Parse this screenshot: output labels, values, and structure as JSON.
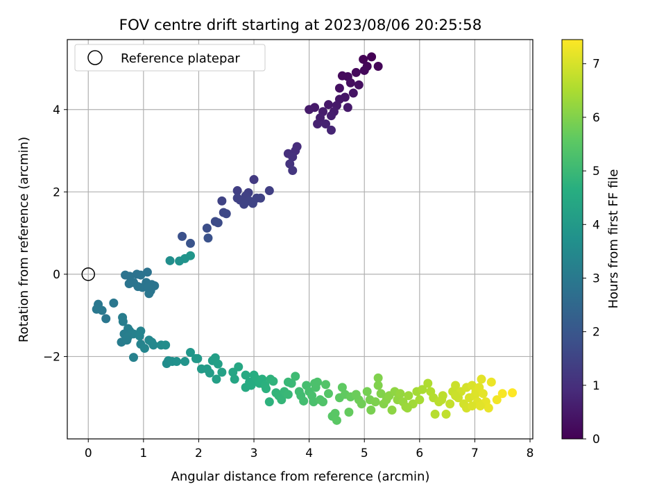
{
  "chart_data": {
    "type": "scatter",
    "title": "FOV centre drift starting at 2023/08/06 20:25:58",
    "xlabel": "Angular distance from reference (arcmin)",
    "ylabel": "Rotation from reference (arcmin)",
    "xlim": [
      -0.38,
      8.05
    ],
    "ylim": [
      -4.0,
      5.7
    ],
    "x_ticks": [
      0,
      1,
      2,
      3,
      4,
      5,
      6,
      7,
      8
    ],
    "y_ticks": [
      -2,
      0,
      2,
      4
    ],
    "grid": true,
    "legend": {
      "placement": "top-left",
      "entries": [
        "Reference platepar"
      ]
    },
    "colorbar": {
      "label": "Hours from first FF file",
      "range": [
        0,
        7.45
      ],
      "ticks": [
        0,
        1,
        2,
        3,
        4,
        5,
        6,
        7
      ],
      "colormap": "viridis"
    },
    "reference_point": {
      "x": 0,
      "y": 0,
      "label": "Reference platepar"
    },
    "series": [
      {
        "points": [
          [
            5.13,
            5.28
          ],
          [
            4.98,
            5.22
          ],
          [
            5.25,
            5.05
          ],
          [
            5.05,
            5.05
          ],
          [
            5.0,
            4.95
          ],
          [
            4.85,
            4.9
          ],
          [
            4.7,
            4.8
          ],
          [
            4.6,
            4.82
          ],
          [
            4.75,
            4.65
          ],
          [
            4.9,
            4.6
          ],
          [
            4.55,
            4.52
          ],
          [
            4.8,
            4.4
          ],
          [
            4.65,
            4.3
          ],
          [
            4.55,
            4.25
          ],
          [
            4.5,
            4.1
          ],
          [
            4.7,
            4.05
          ],
          [
            4.35,
            4.12
          ],
          [
            4.45,
            3.95
          ],
          [
            4.25,
            3.95
          ],
          [
            4.1,
            4.05
          ],
          [
            4.0,
            4.0
          ],
          [
            4.4,
            3.85
          ],
          [
            4.2,
            3.8
          ],
          [
            4.15,
            3.65
          ],
          [
            4.3,
            3.65
          ],
          [
            4.4,
            3.5
          ],
          [
            3.78,
            3.1
          ],
          [
            3.75,
            3.0
          ],
          [
            3.62,
            2.93
          ],
          [
            3.7,
            2.85
          ],
          [
            3.65,
            2.68
          ],
          [
            3.7,
            2.52
          ],
          [
            3.0,
            2.3
          ],
          [
            3.28,
            2.03
          ],
          [
            2.7,
            2.03
          ],
          [
            2.9,
            1.98
          ],
          [
            2.85,
            1.9
          ],
          [
            3.05,
            1.85
          ],
          [
            3.12,
            1.85
          ],
          [
            2.7,
            1.85
          ],
          [
            2.75,
            1.8
          ],
          [
            2.92,
            1.78
          ],
          [
            2.98,
            1.72
          ],
          [
            2.82,
            1.7
          ],
          [
            2.42,
            1.78
          ],
          [
            2.45,
            1.5
          ],
          [
            2.5,
            1.47
          ],
          [
            2.3,
            1.28
          ],
          [
            2.35,
            1.25
          ],
          [
            2.15,
            1.12
          ],
          [
            2.17,
            0.88
          ],
          [
            1.7,
            0.92
          ],
          [
            1.85,
            0.75
          ],
          [
            1.85,
            0.45
          ],
          [
            1.75,
            0.38
          ],
          [
            1.65,
            0.32
          ],
          [
            1.48,
            0.33
          ],
          [
            1.07,
            0.05
          ],
          [
            0.95,
            -0.02
          ],
          [
            0.88,
            0.0
          ],
          [
            0.67,
            -0.02
          ],
          [
            0.75,
            -0.05
          ],
          [
            0.82,
            -0.2
          ],
          [
            0.74,
            -0.23
          ],
          [
            0.9,
            -0.3
          ],
          [
            0.98,
            -0.32
          ],
          [
            1.05,
            -0.2
          ],
          [
            1.15,
            -0.25
          ],
          [
            1.2,
            -0.28
          ],
          [
            1.13,
            -0.4
          ],
          [
            1.1,
            -0.47
          ],
          [
            1.08,
            -0.32
          ],
          [
            0.18,
            -0.73
          ],
          [
            0.15,
            -0.85
          ],
          [
            0.25,
            -0.88
          ],
          [
            0.32,
            -1.08
          ],
          [
            0.46,
            -0.7
          ],
          [
            0.62,
            -1.05
          ],
          [
            0.63,
            -1.15
          ],
          [
            0.72,
            -1.32
          ],
          [
            0.75,
            -1.38
          ],
          [
            0.82,
            -1.45
          ],
          [
            0.65,
            -1.45
          ],
          [
            0.72,
            -1.52
          ],
          [
            0.6,
            -1.65
          ],
          [
            0.7,
            -1.6
          ],
          [
            0.95,
            -1.38
          ],
          [
            0.93,
            -1.5
          ],
          [
            0.95,
            -1.7
          ],
          [
            1.02,
            -1.8
          ],
          [
            1.1,
            -1.6
          ],
          [
            1.15,
            -1.65
          ],
          [
            1.18,
            -1.72
          ],
          [
            1.32,
            -1.72
          ],
          [
            1.4,
            -1.72
          ],
          [
            0.82,
            -2.02
          ],
          [
            1.45,
            -2.1
          ],
          [
            1.42,
            -2.17
          ],
          [
            1.52,
            -2.12
          ],
          [
            1.6,
            -2.12
          ],
          [
            1.75,
            -2.12
          ],
          [
            1.85,
            -1.9
          ],
          [
            1.95,
            -2.05
          ],
          [
            2.05,
            -2.3
          ],
          [
            2.15,
            -2.3
          ],
          [
            2.25,
            -2.1
          ],
          [
            2.3,
            -2.03
          ],
          [
            2.35,
            -2.18
          ],
          [
            2.42,
            -2.38
          ],
          [
            2.32,
            -2.55
          ],
          [
            2.62,
            -2.38
          ],
          [
            2.65,
            -2.55
          ],
          [
            2.72,
            -2.25
          ],
          [
            2.85,
            -2.45
          ],
          [
            2.85,
            -2.75
          ],
          [
            2.92,
            -2.62
          ],
          [
            3.0,
            -2.45
          ],
          [
            3.05,
            -2.55
          ],
          [
            3.1,
            -2.65
          ],
          [
            3.15,
            -2.55
          ],
          [
            3.2,
            -2.7
          ],
          [
            3.22,
            -2.78
          ],
          [
            3.3,
            -2.55
          ],
          [
            3.35,
            -2.6
          ],
          [
            3.4,
            -2.88
          ],
          [
            3.45,
            -2.95
          ],
          [
            3.5,
            -3.05
          ],
          [
            3.55,
            -2.85
          ],
          [
            3.62,
            -2.92
          ],
          [
            3.68,
            -2.65
          ],
          [
            3.75,
            -2.48
          ],
          [
            3.82,
            -2.85
          ],
          [
            3.85,
            -2.95
          ],
          [
            3.9,
            -3.08
          ],
          [
            3.95,
            -2.7
          ],
          [
            4.0,
            -2.85
          ],
          [
            4.05,
            -2.95
          ],
          [
            4.08,
            -3.1
          ],
          [
            4.12,
            -2.75
          ],
          [
            4.15,
            -2.62
          ],
          [
            4.2,
            -3.05
          ],
          [
            4.25,
            -3.1
          ],
          [
            4.3,
            -2.68
          ],
          [
            4.35,
            -2.9
          ],
          [
            4.42,
            -3.45
          ],
          [
            4.47,
            -3.38
          ],
          [
            4.5,
            -3.55
          ],
          [
            4.55,
            -3.0
          ],
          [
            4.6,
            -2.75
          ],
          [
            4.65,
            -2.92
          ],
          [
            4.72,
            -3.35
          ],
          [
            4.75,
            -2.98
          ],
          [
            4.9,
            -3.05
          ],
          [
            4.95,
            -3.15
          ],
          [
            5.05,
            -2.85
          ],
          [
            5.1,
            -3.05
          ],
          [
            5.12,
            -3.3
          ],
          [
            5.2,
            -3.1
          ],
          [
            5.25,
            -2.7
          ],
          [
            5.25,
            -2.52
          ],
          [
            5.3,
            -2.9
          ],
          [
            5.35,
            -3.15
          ],
          [
            5.4,
            -3.05
          ],
          [
            5.45,
            -2.95
          ],
          [
            5.5,
            -3.3
          ],
          [
            5.55,
            -2.85
          ],
          [
            5.6,
            -3.05
          ],
          [
            5.65,
            -2.9
          ],
          [
            5.7,
            -3.1
          ],
          [
            5.75,
            -3.22
          ],
          [
            5.8,
            -2.95
          ],
          [
            5.88,
            -3.15
          ],
          [
            5.95,
            -2.85
          ],
          [
            6.0,
            -3.05
          ],
          [
            6.05,
            -2.8
          ],
          [
            6.15,
            -2.65
          ],
          [
            6.2,
            -2.85
          ],
          [
            6.25,
            -3.0
          ],
          [
            6.28,
            -3.4
          ],
          [
            6.35,
            -3.1
          ],
          [
            6.42,
            -2.95
          ],
          [
            6.48,
            -3.4
          ],
          [
            6.55,
            -3.15
          ],
          [
            6.6,
            -2.85
          ],
          [
            6.65,
            -2.7
          ],
          [
            6.7,
            -3.0
          ],
          [
            6.75,
            -2.85
          ],
          [
            6.8,
            -3.15
          ],
          [
            6.85,
            -2.75
          ],
          [
            6.9,
            -3.0
          ],
          [
            6.95,
            -2.7
          ],
          [
            7.0,
            -2.95
          ],
          [
            7.02,
            -2.85
          ],
          [
            7.05,
            -3.1
          ],
          [
            7.08,
            -2.75
          ],
          [
            7.12,
            -2.55
          ],
          [
            7.15,
            -2.9
          ],
          [
            7.2,
            -3.1
          ],
          [
            7.25,
            -3.25
          ],
          [
            7.3,
            -2.62
          ],
          [
            7.4,
            -3.05
          ],
          [
            7.5,
            -2.9
          ],
          [
            7.68,
            -2.88
          ],
          [
            6.85,
            -3.25
          ],
          [
            6.95,
            -3.2
          ],
          [
            7.1,
            -3.2
          ],
          [
            6.65,
            -2.95
          ],
          [
            6.4,
            -3.05
          ],
          [
            5.78,
            -3.25
          ],
          [
            4.85,
            -2.92
          ],
          [
            4.1,
            -2.65
          ],
          [
            3.62,
            -2.62
          ],
          [
            3.28,
            -3.1
          ],
          [
            2.95,
            -2.7
          ],
          [
            2.2,
            -2.4
          ],
          [
            1.98,
            -2.05
          ]
        ]
      }
    ]
  }
}
